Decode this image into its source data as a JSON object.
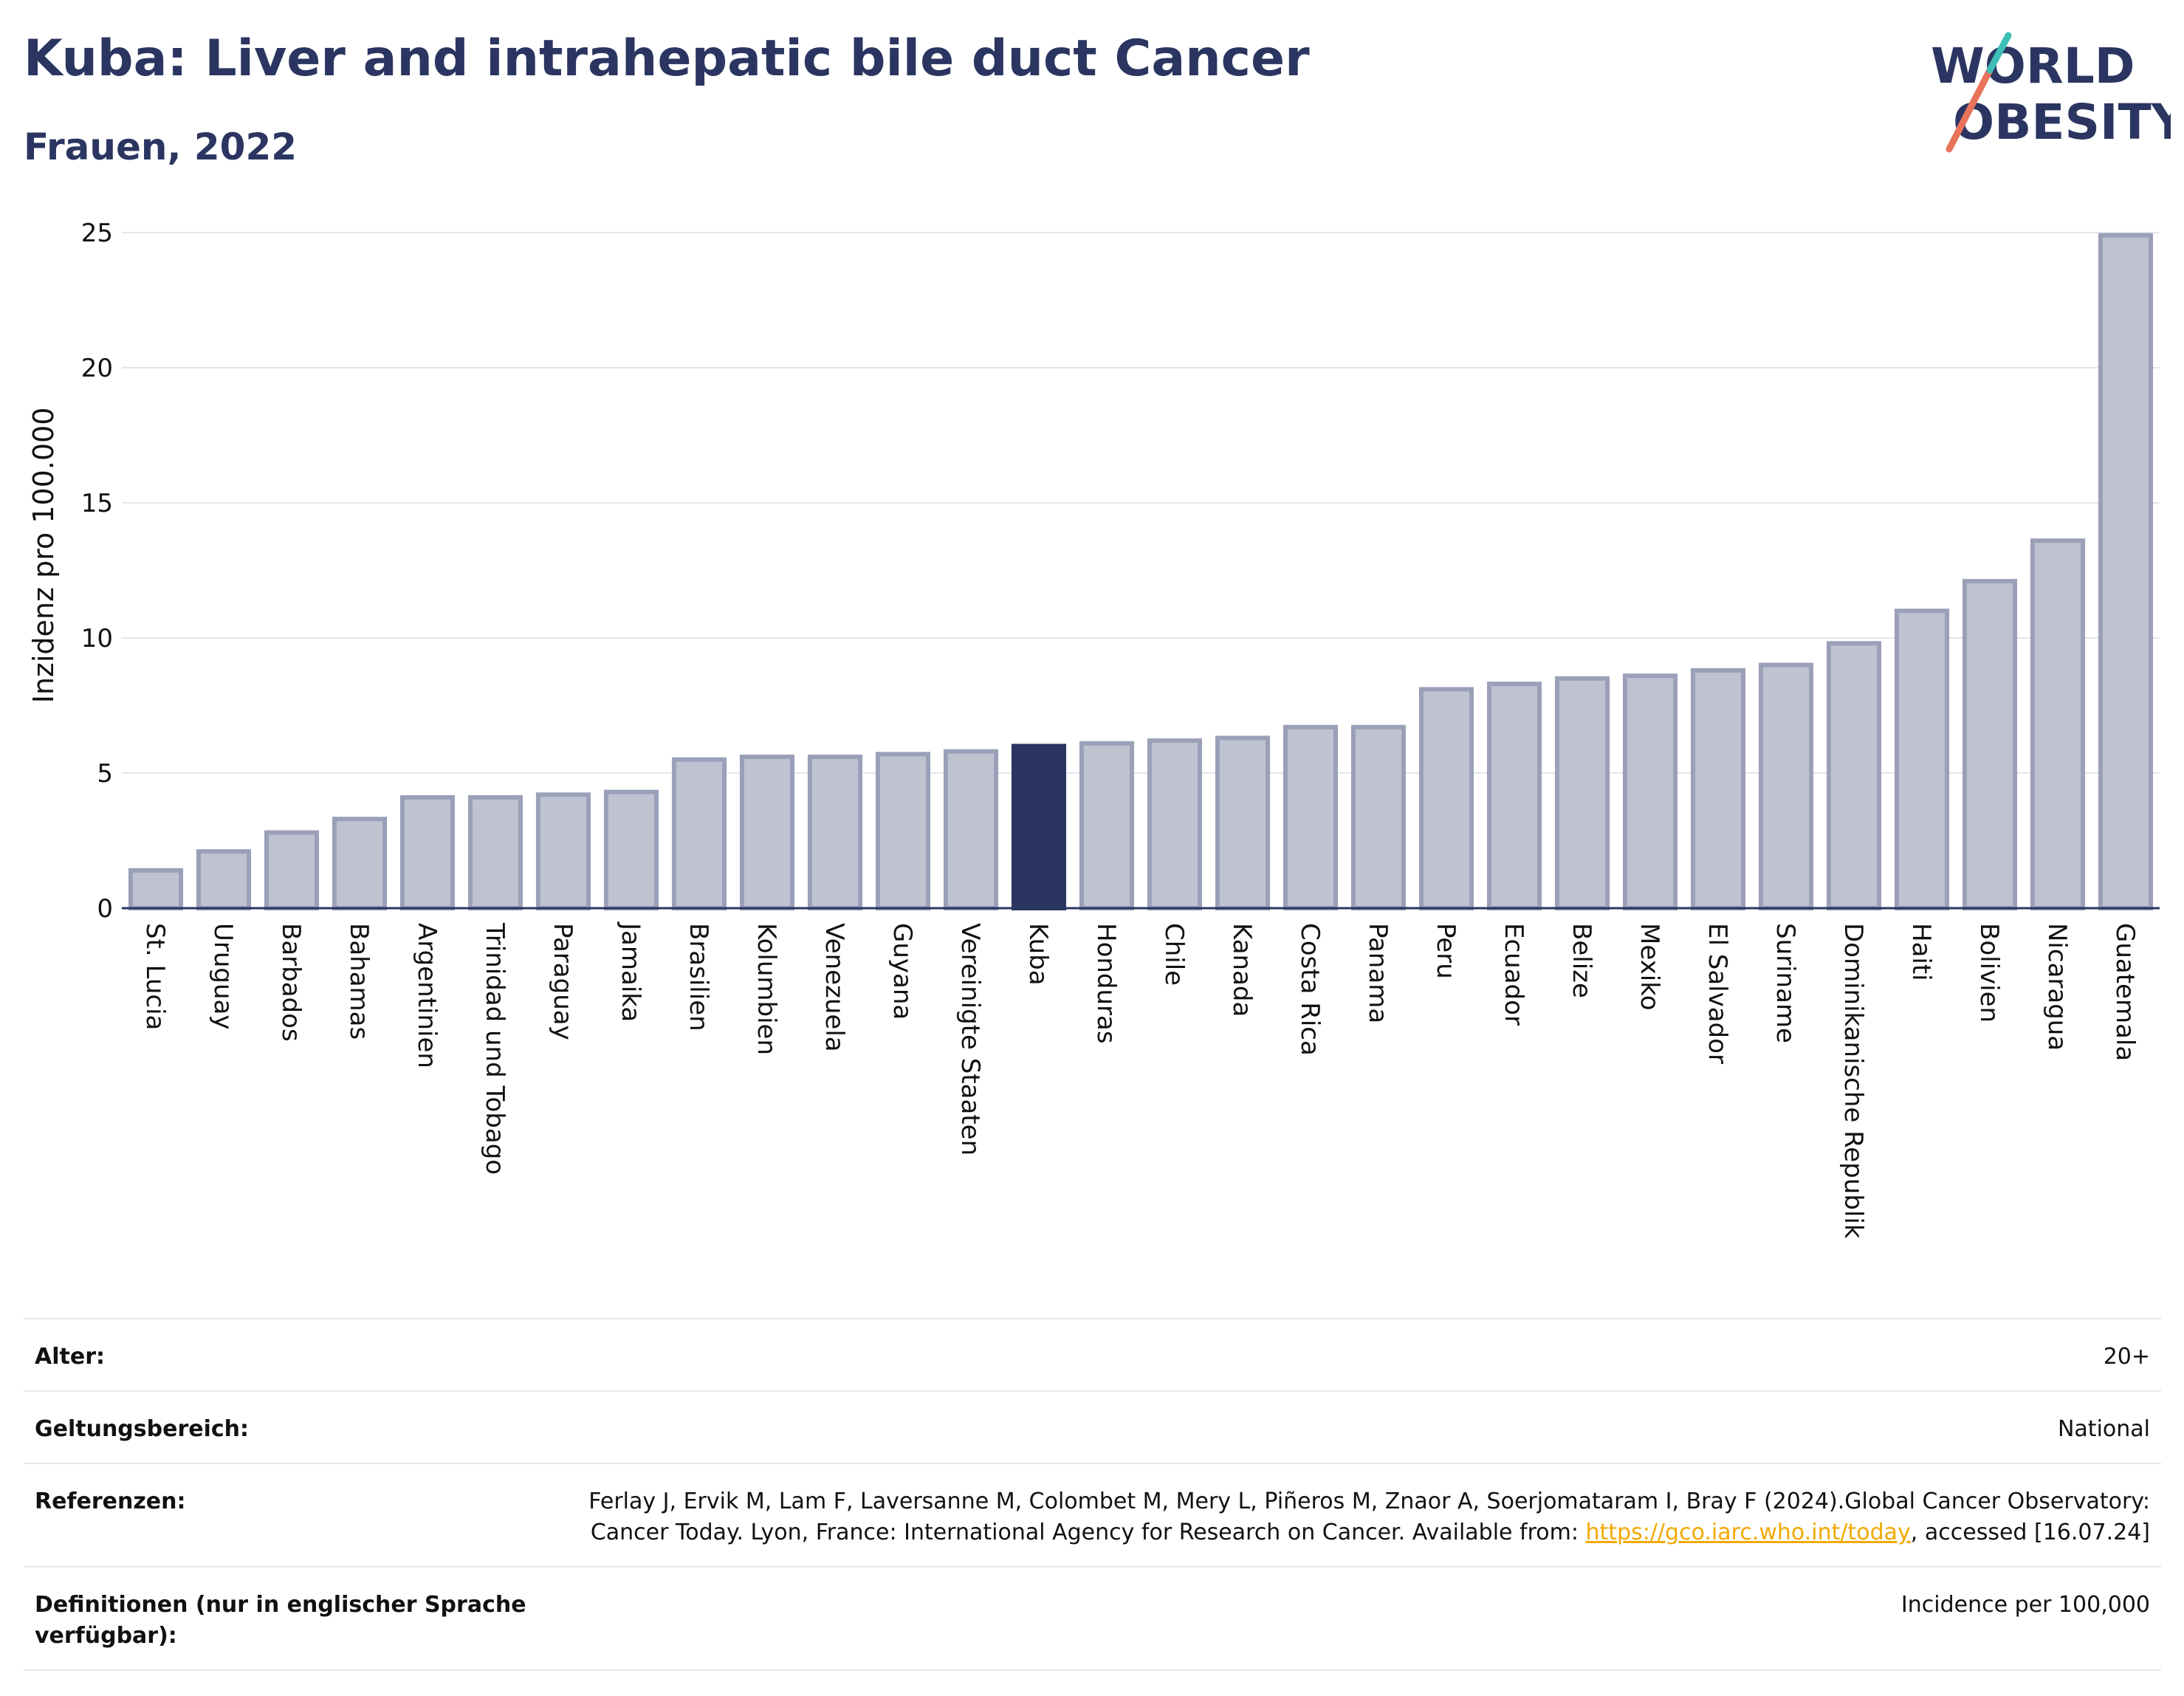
{
  "title": "Kuba: Liver and intrahepatic bile duct Cancer",
  "subtitle": "Frauen, 2022",
  "logo": {
    "line1": "WORLD",
    "line2": "OBESITY"
  },
  "colors": {
    "highlight": "#2b3561",
    "bar": "#bfc3d1",
    "bar_border": "#9aa0b8",
    "title": "#2b3561",
    "link": "#f2a900"
  },
  "chart_data": {
    "type": "bar",
    "title": "Kuba: Liver and intrahepatic bile duct Cancer",
    "subtitle": "Frauen, 2022",
    "xlabel": "",
    "ylabel": "Inzidenz pro 100.000",
    "ylim": [
      0,
      25
    ],
    "yticks": [
      0,
      5,
      10,
      15,
      20,
      25
    ],
    "grid": true,
    "highlight": "Kuba",
    "categories": [
      "St. Lucia",
      "Uruguay",
      "Barbados",
      "Bahamas",
      "Argentinien",
      "Trinidad und Tobago",
      "Paraguay",
      "Jamaika",
      "Brasilien",
      "Kolumbien",
      "Venezuela",
      "Guyana",
      "Vereinigte Staaten",
      "Kuba",
      "Honduras",
      "Chile",
      "Kanada",
      "Costa Rica",
      "Panama",
      "Peru",
      "Ecuador",
      "Belize",
      "Mexiko",
      "El Salvador",
      "Suriname",
      "Dominikanische Republik",
      "Haiti",
      "Bolivien",
      "Nicaragua",
      "Guatemala"
    ],
    "values": [
      1.4,
      2.1,
      2.8,
      3.3,
      4.1,
      4.1,
      4.2,
      4.3,
      5.5,
      5.6,
      5.6,
      5.7,
      5.8,
      6.0,
      6.1,
      6.2,
      6.3,
      6.7,
      6.7,
      8.1,
      8.3,
      8.5,
      8.6,
      8.8,
      9.0,
      9.8,
      11.0,
      12.1,
      13.6,
      24.9
    ]
  },
  "info": {
    "age": {
      "label": "Alter:",
      "value": "20+"
    },
    "scope": {
      "label": "Geltungsbereich:",
      "value": "National"
    },
    "references": {
      "label": "Referenzen:",
      "value_pre": "Ferlay J, Ervik M, Lam F, Laversanne M, Colombet M, Mery L, Piñeros M, Znaor A, Soerjomataram I, Bray F (2024).Global Cancer Observatory: Cancer Today. Lyon, France: International Agency for Research on Cancer. Available from: ",
      "link": "https://gco.iarc.who.int/today",
      "value_post": ", accessed [16.07.24]"
    },
    "definitions": {
      "label": "Definitionen (nur in englischer Sprache verfügbar):",
      "value": "Incidence per 100,000"
    }
  }
}
